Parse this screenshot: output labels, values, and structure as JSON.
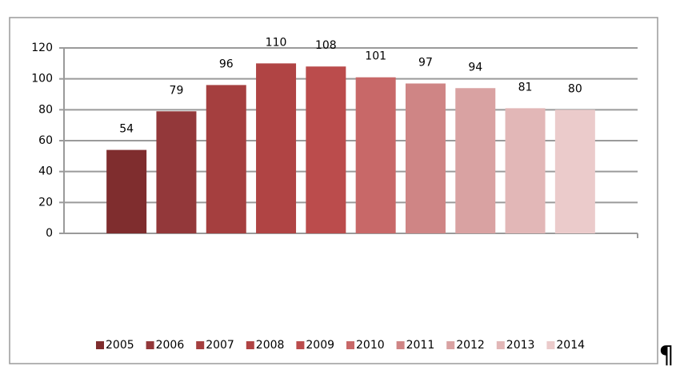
{
  "chart_data": {
    "type": "bar",
    "categories": [
      null
    ],
    "series": [
      {
        "name": "2005",
        "color": "#7f2d2e",
        "values": [
          54
        ]
      },
      {
        "name": "2006",
        "color": "#93383a",
        "values": [
          79
        ]
      },
      {
        "name": "2007",
        "color": "#a53f3f",
        "values": [
          96
        ]
      },
      {
        "name": "2008",
        "color": "#b04444",
        "values": [
          110
        ]
      },
      {
        "name": "2009",
        "color": "#bb4c4c",
        "values": [
          108
        ]
      },
      {
        "name": "2010",
        "color": "#c86868",
        "values": [
          101
        ]
      },
      {
        "name": "2011",
        "color": "#cf8585",
        "values": [
          97
        ]
      },
      {
        "name": "2012",
        "color": "#d9a2a2",
        "values": [
          94
        ]
      },
      {
        "name": "2013",
        "color": "#e2b7b7",
        "values": [
          81
        ]
      },
      {
        "name": "2014",
        "color": "#ebcbcb",
        "values": [
          80
        ]
      }
    ],
    "ylim": [
      0,
      120
    ],
    "yticks": [
      0,
      20,
      40,
      60,
      80,
      100,
      120
    ],
    "grid": true,
    "legend": "bottom"
  },
  "pilcrow": "¶"
}
